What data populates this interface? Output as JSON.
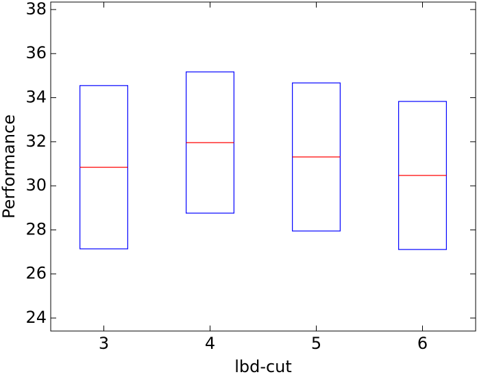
{
  "chart_data": {
    "type": "box",
    "x_label": "lbd-cut",
    "y_label": "Performance",
    "categories": [
      "3",
      "4",
      "5",
      "6"
    ],
    "q1": [
      27.14,
      28.76,
      27.95,
      27.11
    ],
    "median": [
      30.84,
      31.96,
      31.31,
      30.47
    ],
    "q3": [
      34.55,
      35.17,
      34.67,
      33.83
    ],
    "box_color": "#0000ff",
    "median_color": "#ff0000",
    "ylim": [
      23.41,
      38.34
    ],
    "yticks": [
      24,
      26,
      28,
      30,
      32,
      34,
      36,
      38
    ],
    "grid": false
  }
}
